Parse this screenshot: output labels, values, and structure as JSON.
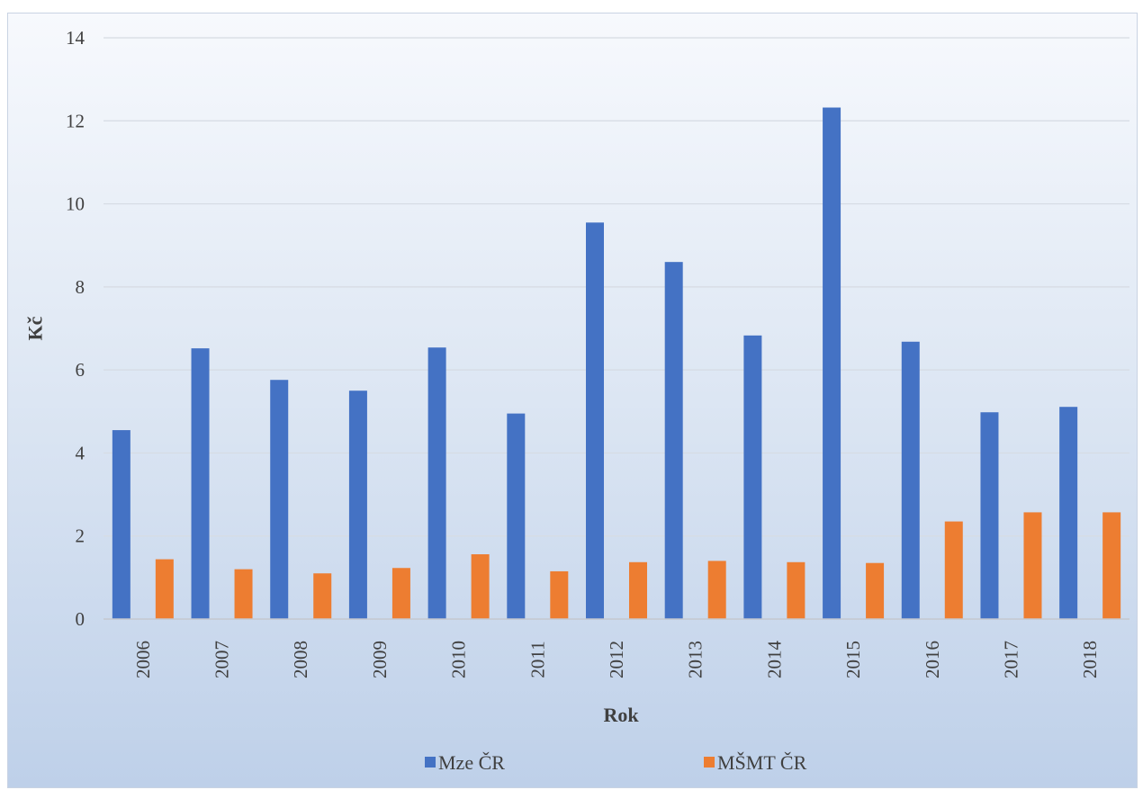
{
  "chart_data": {
    "type": "bar",
    "title": "",
    "xlabel": "Rok",
    "ylabel": "Kč",
    "ylim": [
      0,
      14
    ],
    "yticks": [
      0,
      2,
      4,
      6,
      8,
      10,
      12,
      14
    ],
    "grid": true,
    "legend_position": "bottom",
    "categories": [
      "2006",
      "2007",
      "2008",
      "2009",
      "2010",
      "2011",
      "2012",
      "2013",
      "2014",
      "2015",
      "2016",
      "2017",
      "2018"
    ],
    "series": [
      {
        "name": "Mze ČR",
        "color": "#4472c4",
        "values": [
          4.55,
          6.52,
          5.76,
          5.5,
          6.54,
          4.95,
          9.55,
          8.6,
          6.83,
          12.32,
          6.68,
          4.98,
          5.11
        ]
      },
      {
        "name": "MŠMT ČR",
        "color": "#ed7d31",
        "values": [
          1.44,
          1.2,
          1.1,
          1.23,
          1.56,
          1.15,
          1.37,
          1.4,
          1.37,
          1.35,
          2.35,
          2.57,
          2.57
        ]
      }
    ]
  }
}
